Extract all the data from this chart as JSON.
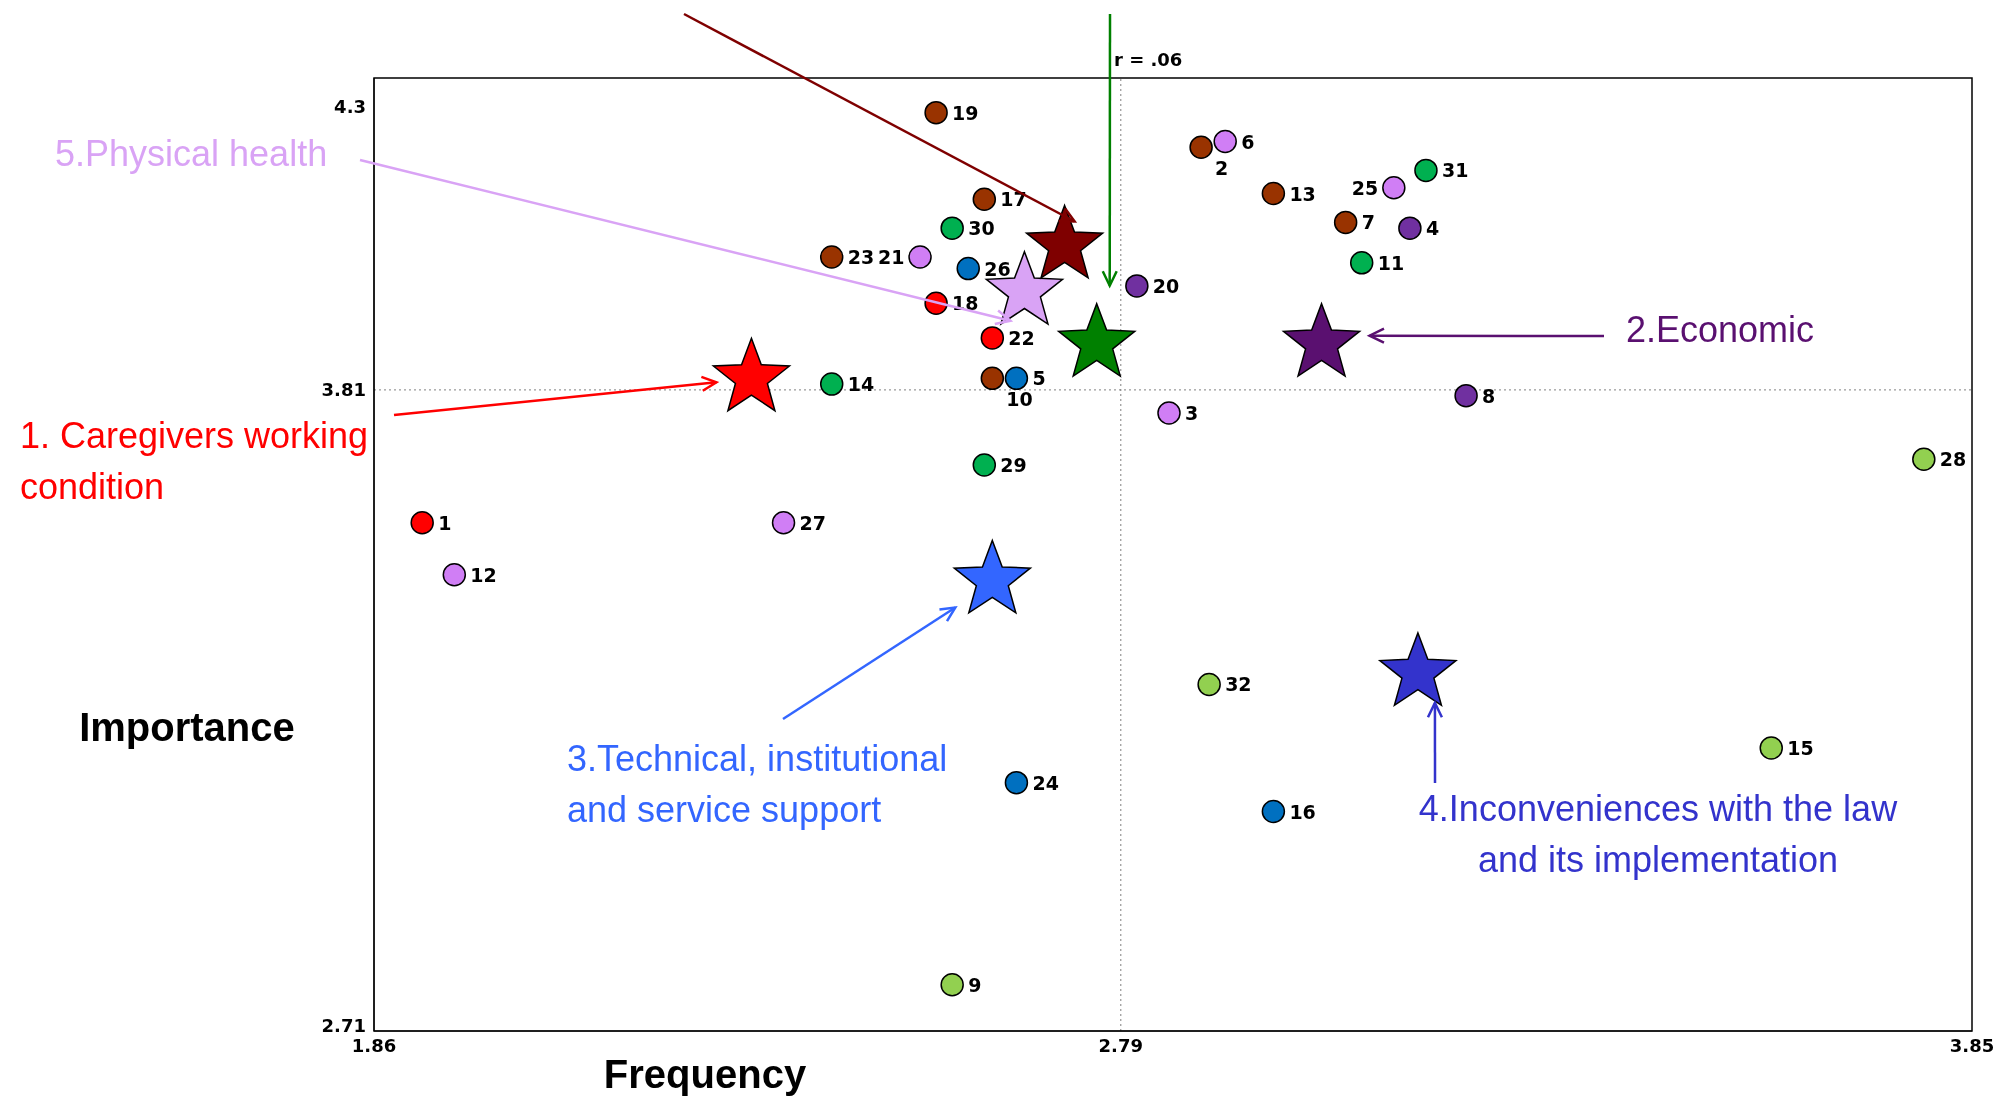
{
  "chart_data": {
    "type": "scatter",
    "xlabel": "Frequency",
    "ylabel": "Importance",
    "xlim": [
      1.86,
      3.85
    ],
    "xticks": [
      1.86,
      2.79,
      3.85
    ],
    "ylim": [
      2.7,
      4.35
    ],
    "yticks": [
      2.71,
      3.81,
      4.3
    ],
    "marker": "circle",
    "annotations": [
      "r = .06",
      {
        "text": "1",
        "x": 1.92,
        "y": 3.58
      },
      {
        "text": "18",
        "x": 2.56,
        "y": 3.96
      },
      {
        "text": "22",
        "x": 2.63,
        "y": 3.9
      },
      {
        "text": "20",
        "x": 2.81,
        "y": 3.99
      },
      {
        "text": "4",
        "x": 3.15,
        "y": 4.09
      },
      {
        "text": "8",
        "x": 3.22,
        "y": 3.8
      },
      {
        "text": "26",
        "x": 2.6,
        "y": 4.02
      },
      {
        "text": "5",
        "x": 2.66,
        "y": 3.83
      },
      {
        "text": "24",
        "x": 2.66,
        "y": 3.13
      },
      {
        "text": "16",
        "x": 2.98,
        "y": 3.08
      },
      {
        "text": "32",
        "x": 2.9,
        "y": 3.3
      },
      {
        "text": "15",
        "x": 3.6,
        "y": 3.19
      },
      {
        "text": "28",
        "x": 3.79,
        "y": 3.69
      },
      {
        "text": "9",
        "x": 2.58,
        "y": 2.78
      },
      {
        "text": "12",
        "x": 1.96,
        "y": 3.49
      },
      {
        "text": "27",
        "x": 2.37,
        "y": 3.58
      },
      {
        "text": "21",
        "x": 2.54,
        "y": 4.04
      },
      {
        "text": "6",
        "x": 2.92,
        "y": 4.24
      },
      {
        "text": "3",
        "x": 2.85,
        "y": 3.77
      },
      {
        "text": "25",
        "x": 3.13,
        "y": 4.16
      },
      {
        "text": "19",
        "x": 2.56,
        "y": 4.29
      },
      {
        "text": "2",
        "x": 2.89,
        "y": 4.23
      },
      {
        "text": "17",
        "x": 2.62,
        "y": 4.14
      },
      {
        "text": "23",
        "x": 2.43,
        "y": 4.04
      },
      {
        "text": "10",
        "x": 2.63,
        "y": 3.83
      },
      {
        "text": "13",
        "x": 2.98,
        "y": 4.15
      },
      {
        "text": "7",
        "x": 3.07,
        "y": 4.1
      },
      {
        "text": "30",
        "x": 2.58,
        "y": 4.09
      },
      {
        "text": "14",
        "x": 2.43,
        "y": 3.82
      },
      {
        "text": "29",
        "x": 2.62,
        "y": 3.68
      },
      {
        "text": "31",
        "x": 3.17,
        "y": 4.19
      },
      {
        "text": "11",
        "x": 3.09,
        "y": 4.03
      }
    ],
    "ref_lines": [
      {
        "axis": "x",
        "value": 2.79,
        "line_style": "dotted",
        "color": "#808080"
      },
      {
        "axis": "y",
        "value": 3.81,
        "line_style": "dotted",
        "color": "#808080"
      }
    ],
    "series": [
      {
        "color": "#ff0000",
        "x": [
          1.92,
          2.56,
          2.63
        ],
        "values": [
          3.58,
          3.96,
          3.9
        ]
      },
      {
        "color": "#7030a0",
        "x": [
          2.81,
          3.15,
          3.22
        ],
        "values": [
          3.99,
          4.09,
          3.8
        ]
      },
      {
        "color": "#0070c0",
        "x": [
          2.6,
          2.66,
          2.66,
          2.98
        ],
        "values": [
          4.02,
          3.83,
          3.13,
          3.08
        ]
      },
      {
        "color": "#92d050",
        "x": [
          2.9,
          3.6,
          3.79,
          2.58
        ],
        "values": [
          3.3,
          3.19,
          3.69,
          2.78
        ]
      },
      {
        "color": "#d07ef5",
        "x": [
          1.96,
          2.37,
          2.54,
          2.92,
          2.85,
          3.13
        ],
        "values": [
          3.49,
          3.58,
          4.04,
          4.24,
          3.77,
          4.16
        ]
      },
      {
        "color": "#993300",
        "x": [
          2.56,
          2.89,
          2.62,
          2.43,
          2.63,
          2.98,
          3.07
        ],
        "values": [
          4.29,
          4.23,
          4.14,
          4.04,
          3.83,
          4.15,
          4.1
        ]
      },
      {
        "color": "#00b050",
        "x": [
          2.58,
          2.43,
          2.62,
          3.17,
          3.09
        ],
        "values": [
          4.09,
          3.82,
          3.68,
          4.19,
          4.03
        ]
      },
      {
        "name": "1. Caregivers working condition",
        "color": "#ff0000",
        "marker": "star",
        "x": [
          2.33
        ],
        "values": [
          3.83
        ]
      },
      {
        "name": "2.Economic",
        "color": "#5a1070",
        "marker": "star",
        "x": [
          3.04
        ],
        "values": [
          3.89
        ]
      },
      {
        "name": "3.Technical, institutional and service support",
        "color": "#3366ff",
        "marker": "star",
        "x": [
          2.63
        ],
        "values": [
          3.48
        ]
      },
      {
        "name": "4.Inconveniences with the law and its implementation",
        "color": "#3333cc",
        "marker": "star",
        "x": [
          3.16
        ],
        "values": [
          3.32
        ]
      },
      {
        "name": "5.Physical health",
        "color": "#d9a3f5",
        "marker": "star",
        "x": [
          2.67
        ],
        "values": [
          3.98
        ]
      },
      {
        "color": "#7f0000",
        "marker": "star",
        "x": [
          2.72
        ],
        "values": [
          4.06
        ]
      },
      {
        "color": "#008000",
        "marker": "star",
        "x": [
          2.76
        ],
        "values": [
          3.89
        ]
      }
    ]
  }
}
